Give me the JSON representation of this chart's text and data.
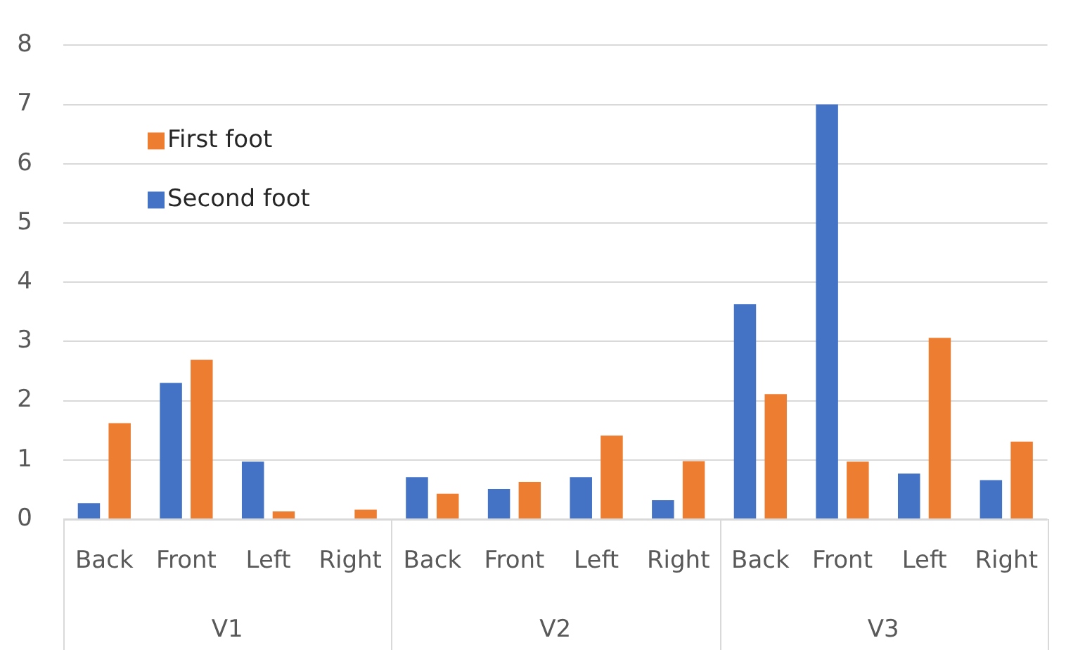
{
  "chart_data": {
    "type": "bar",
    "categories": [
      "Back",
      "Front",
      "Left",
      "Right",
      "Back",
      "Front",
      "Left",
      "Right",
      "Back",
      "Front",
      "Left",
      "Right"
    ],
    "series": [
      {
        "name": "Second foot",
        "color": "#4472c4",
        "values": [
          0.27,
          2.3,
          0.97,
          null,
          0.71,
          0.51,
          0.71,
          0.32,
          3.63,
          7.0,
          0.77,
          0.66
        ]
      },
      {
        "name": "First foot",
        "color": "#ed7d31",
        "values": [
          1.62,
          2.69,
          0.13,
          0.16,
          0.43,
          0.63,
          1.41,
          0.98,
          2.11,
          0.97,
          3.06,
          1.31
        ]
      }
    ],
    "annotations": [
      "V1",
      "V2",
      "V3"
    ],
    "ylim": [
      0,
      8
    ],
    "yticks": [
      0,
      1,
      2,
      3,
      4,
      5,
      6,
      7,
      8
    ],
    "grid": "y",
    "legend": "top left"
  }
}
